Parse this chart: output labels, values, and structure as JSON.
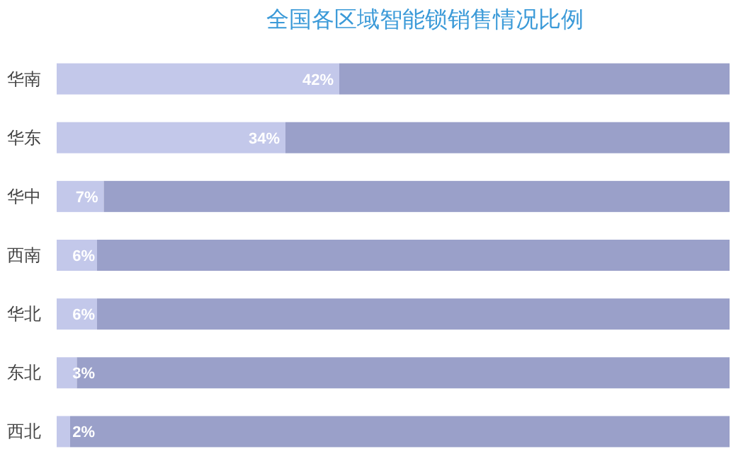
{
  "chart_data": {
    "type": "bar",
    "orientation": "horizontal",
    "stacked": true,
    "title": "全国各区域智能锁销售情况比例",
    "categories": [
      "华南",
      "华东",
      "华中",
      "西南",
      "华北",
      "东北",
      "西北"
    ],
    "xlim": [
      0,
      100
    ],
    "series": [
      {
        "color": "#c3c8ea",
        "values": [
          42,
          34,
          7,
          6,
          6,
          3,
          2
        ],
        "value_labels": [
          "42%",
          "34%",
          "7%",
          "6%",
          "6%",
          "3%",
          "2%"
        ]
      },
      {
        "color": "#9aa0c9",
        "values": [
          58,
          66,
          93,
          94,
          94,
          97,
          98
        ]
      }
    ]
  }
}
